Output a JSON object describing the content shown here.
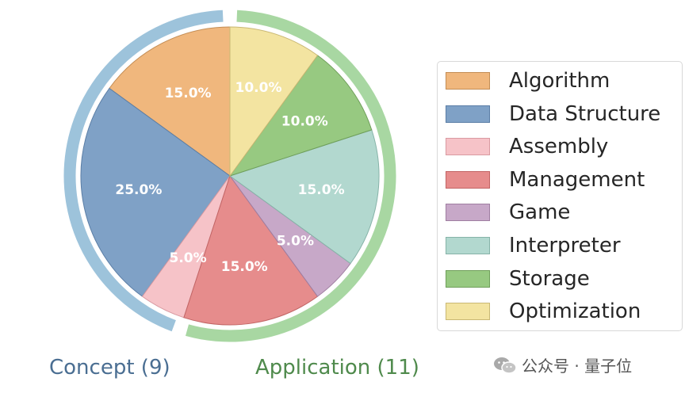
{
  "chart_data": {
    "type": "pie",
    "slices": [
      {
        "label": "Algorithm",
        "value": 15.0,
        "pct_label": "15.0%",
        "color": "#f0b77d",
        "stroke": "#c38d55"
      },
      {
        "label": "Data Structure",
        "value": 25.0,
        "pct_label": "25.0%",
        "color": "#7fa1c6",
        "stroke": "#5b7ea6"
      },
      {
        "label": "Assembly",
        "value": 5.0,
        "pct_label": "5.0%",
        "color": "#f6c3c8",
        "stroke": "#d99aa1"
      },
      {
        "label": "Management",
        "value": 15.0,
        "pct_label": "15.0%",
        "color": "#e68c8c",
        "stroke": "#c26565"
      },
      {
        "label": "Game",
        "value": 5.0,
        "pct_label": "5.0%",
        "color": "#c7a8c8",
        "stroke": "#9f7ea1"
      },
      {
        "label": "Interpreter",
        "value": 15.0,
        "pct_label": "15.0%",
        "color": "#b2d8cf",
        "stroke": "#86b3a8"
      },
      {
        "label": "Storage",
        "value": 10.0,
        "pct_label": "10.0%",
        "color": "#97c981",
        "stroke": "#6f9f5a"
      },
      {
        "label": "Optimization",
        "value": 10.0,
        "pct_label": "10.0%",
        "color": "#f3e4a1",
        "stroke": "#c9b874"
      }
    ],
    "start_angle_deg": 90,
    "direction": "counterclockwise",
    "groups": [
      {
        "label": "Concept (9)",
        "count": 9,
        "color": "#9dc3db",
        "text_color": "#4a6e92"
      },
      {
        "label": "Application (11)",
        "count": 11,
        "color": "#a8d7a2",
        "text_color": "#4f8a4c"
      }
    ],
    "legend_position": "right"
  },
  "watermark": {
    "text": "公众号 · 量子位",
    "icon": "wechat-icon"
  }
}
